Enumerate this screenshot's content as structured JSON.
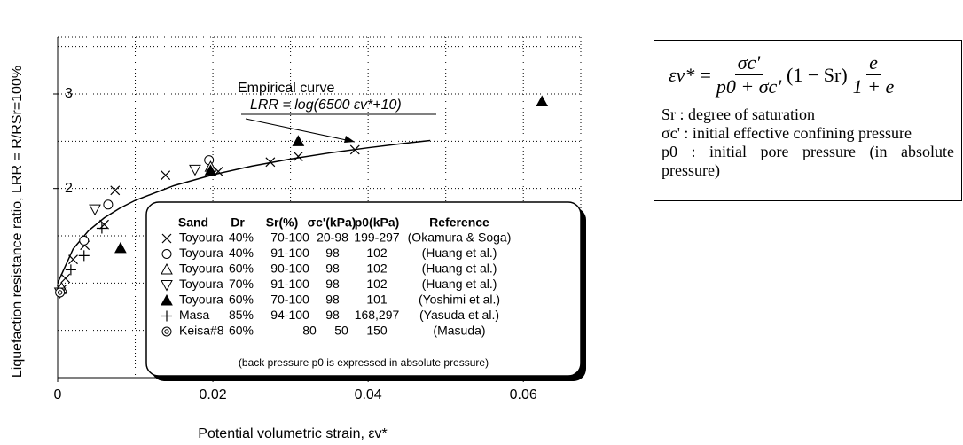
{
  "chart_data": {
    "type": "scatter",
    "x_label": "Potential volumetric strain,  εv*",
    "y_label": "Liquefaction resistance ratio,  LRR = R/RSr=100%",
    "xlim": [
      0,
      0.0674
    ],
    "ylim": [
      0,
      3.6
    ],
    "xticks": [
      0,
      0.02,
      0.04,
      0.06
    ],
    "yticks": [
      2,
      3
    ],
    "xgrid": [
      0.01,
      0.02,
      0.03,
      0.04,
      0.05,
      0.06
    ],
    "ygrid": [
      0.5,
      1,
      1.5,
      2,
      2.5,
      3,
      3.5
    ],
    "grid": true,
    "annotation_title": "Empirical curve",
    "annotation_formula": "LRR = log(6500 εv*+10)",
    "curve": {
      "color": "#000000",
      "x": [
        0,
        0.002,
        0.004,
        0.006,
        0.008,
        0.01,
        0.015,
        0.02,
        0.025,
        0.03,
        0.035,
        0.04,
        0.045,
        0.048
      ],
      "values": [
        1,
        1.362,
        1.556,
        1.69,
        1.792,
        1.875,
        2.031,
        2.146,
        2.237,
        2.312,
        2.376,
        2.431,
        2.481,
        2.508
      ]
    },
    "legend_headers": [
      "Sand",
      "Dr",
      "Sr(%)",
      "σc'(kPa)",
      "p0(kPa)",
      "Reference"
    ],
    "legend_note": "(back pressure p0 is expressed in absolute pressure)",
    "series": [
      {
        "name": "Toyoura",
        "dr": "40%",
        "sr": "70-100",
        "sigma": "20-98",
        "p0": "199-297",
        "reference": "(Okamura & Soga)",
        "marker": "x",
        "color": "#000000",
        "x": [
          0.0005,
          0.001,
          0.002,
          0.0035,
          0.006,
          0.0074,
          0.0139,
          0.0207,
          0.0274,
          0.031,
          0.0383
        ],
        "values": [
          0.93,
          1.05,
          1.25,
          1.4,
          1.62,
          1.98,
          2.14,
          2.18,
          2.28,
          2.34,
          2.41
        ]
      },
      {
        "name": "Toyoura",
        "dr": "40%",
        "sr": "91-100",
        "sigma": "98",
        "p0": "102",
        "reference": "(Huang et al.)",
        "marker": "circle",
        "color": "#000000",
        "x": [
          0.0034,
          0.0065,
          0.0195
        ],
        "values": [
          1.45,
          1.83,
          2.3
        ]
      },
      {
        "name": "Toyoura",
        "dr": "60%",
        "sr": "90-100",
        "sigma": "98",
        "p0": "102",
        "reference": "(Huang et al.)",
        "marker": "triangle",
        "color": "#000000",
        "x": [
          0.0005,
          0.0197
        ],
        "values": [
          0.95,
          2.23
        ]
      },
      {
        "name": "Toyoura",
        "dr": "70%",
        "sr": "91-100",
        "sigma": "98",
        "p0": "102",
        "reference": "(Huang et al.)",
        "marker": "triangle-down",
        "color": "#000000",
        "x": [
          0.0003,
          0.0048,
          0.0177
        ],
        "values": [
          0.9,
          1.78,
          2.2
        ]
      },
      {
        "name": "Toyoura",
        "dr": "60%",
        "sr": "70-100",
        "sigma": "98",
        "p0": "101",
        "reference": "(Yoshimi et al.)",
        "marker": "triangle-filled",
        "color": "#000000",
        "x": [
          0.0081,
          0.0197,
          0.031,
          0.0624
        ],
        "values": [
          1.37,
          2.19,
          2.5,
          2.92
        ]
      },
      {
        "name": "Masa",
        "dr": "85%",
        "sr": "94-100",
        "sigma": "98",
        "p0": "168,297",
        "reference": "(Yasuda et al.)",
        "marker": "plus",
        "color": "#000000",
        "x": [
          0.0017,
          0.0034,
          0.0057
        ],
        "values": [
          1.14,
          1.29,
          1.58
        ]
      },
      {
        "name": "Keisa#8",
        "dr": "60%",
        "sigma": "80",
        "p0": "50",
        "p0b": "150",
        "reference": "(Masuda)",
        "marker": "double-circle",
        "color": "#000000",
        "x": [
          0.0003
        ],
        "values": [
          0.9
        ]
      }
    ]
  },
  "formula_box": {
    "lhs": "εv*",
    "equals": "=",
    "num1": "σc'",
    "den1": "p0 + σc'",
    "middle": "(1 − Sr)",
    "num2": "e",
    "den2": "1 + e",
    "definitions": [
      "Sr : degree of saturation",
      "σc' : initial effective confining pressure",
      "p0 : initial pore pressure (in absolute pressure)"
    ]
  }
}
